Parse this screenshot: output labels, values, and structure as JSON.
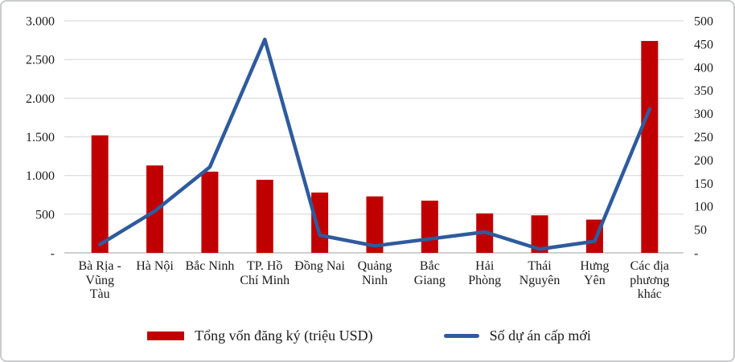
{
  "figure": {
    "background": "#FFFFFF",
    "border_color": "#C9CBCC",
    "text_color": "#1B1B1B",
    "gridline_color": "#D9D9D9",
    "axis_line_color": "#BFBFBF"
  },
  "chart_data": {
    "type": "combo",
    "title": "",
    "xlabel": "",
    "ylabel_left": "",
    "ylabel_right": "",
    "grid": "horizontal",
    "legend_position": "bottom",
    "categories": [
      "Bà Rịa - Vũng Tàu",
      "Hà Nội",
      "Bắc Ninh",
      "TP. Hồ Chí Minh",
      "Đồng Nai",
      "Quảng Ninh",
      "Bắc Giang",
      "Hải Phòng",
      "Thái Nguyên",
      "Hưng Yên",
      "Các địa phương khác"
    ],
    "series": [
      {
        "name": "Tổng vốn đăng ký (triệu USD)",
        "type": "bar",
        "axis": "left",
        "color": "#C00000",
        "values": [
          1520,
          1130,
          1050,
          945,
          780,
          730,
          675,
          510,
          485,
          430,
          2740
        ]
      },
      {
        "name": "Số dự án cấp mới",
        "type": "line",
        "axis": "right",
        "color": "#2F5B9D",
        "values": [
          18,
          90,
          185,
          460,
          38,
          15,
          30,
          45,
          8,
          25,
          310
        ]
      }
    ],
    "left_axis": {
      "min": 0,
      "max": 3000,
      "tick_step": 500,
      "tick_labels": [
        "-",
        "500",
        "1.000",
        "1.500",
        "2.000",
        "2.500",
        "3.000"
      ]
    },
    "right_axis": {
      "min": 0,
      "max": 500,
      "tick_step": 50,
      "tick_labels": [
        "-",
        "50",
        "100",
        "150",
        "200",
        "250",
        "300",
        "350",
        "400",
        "450",
        "500"
      ]
    }
  }
}
